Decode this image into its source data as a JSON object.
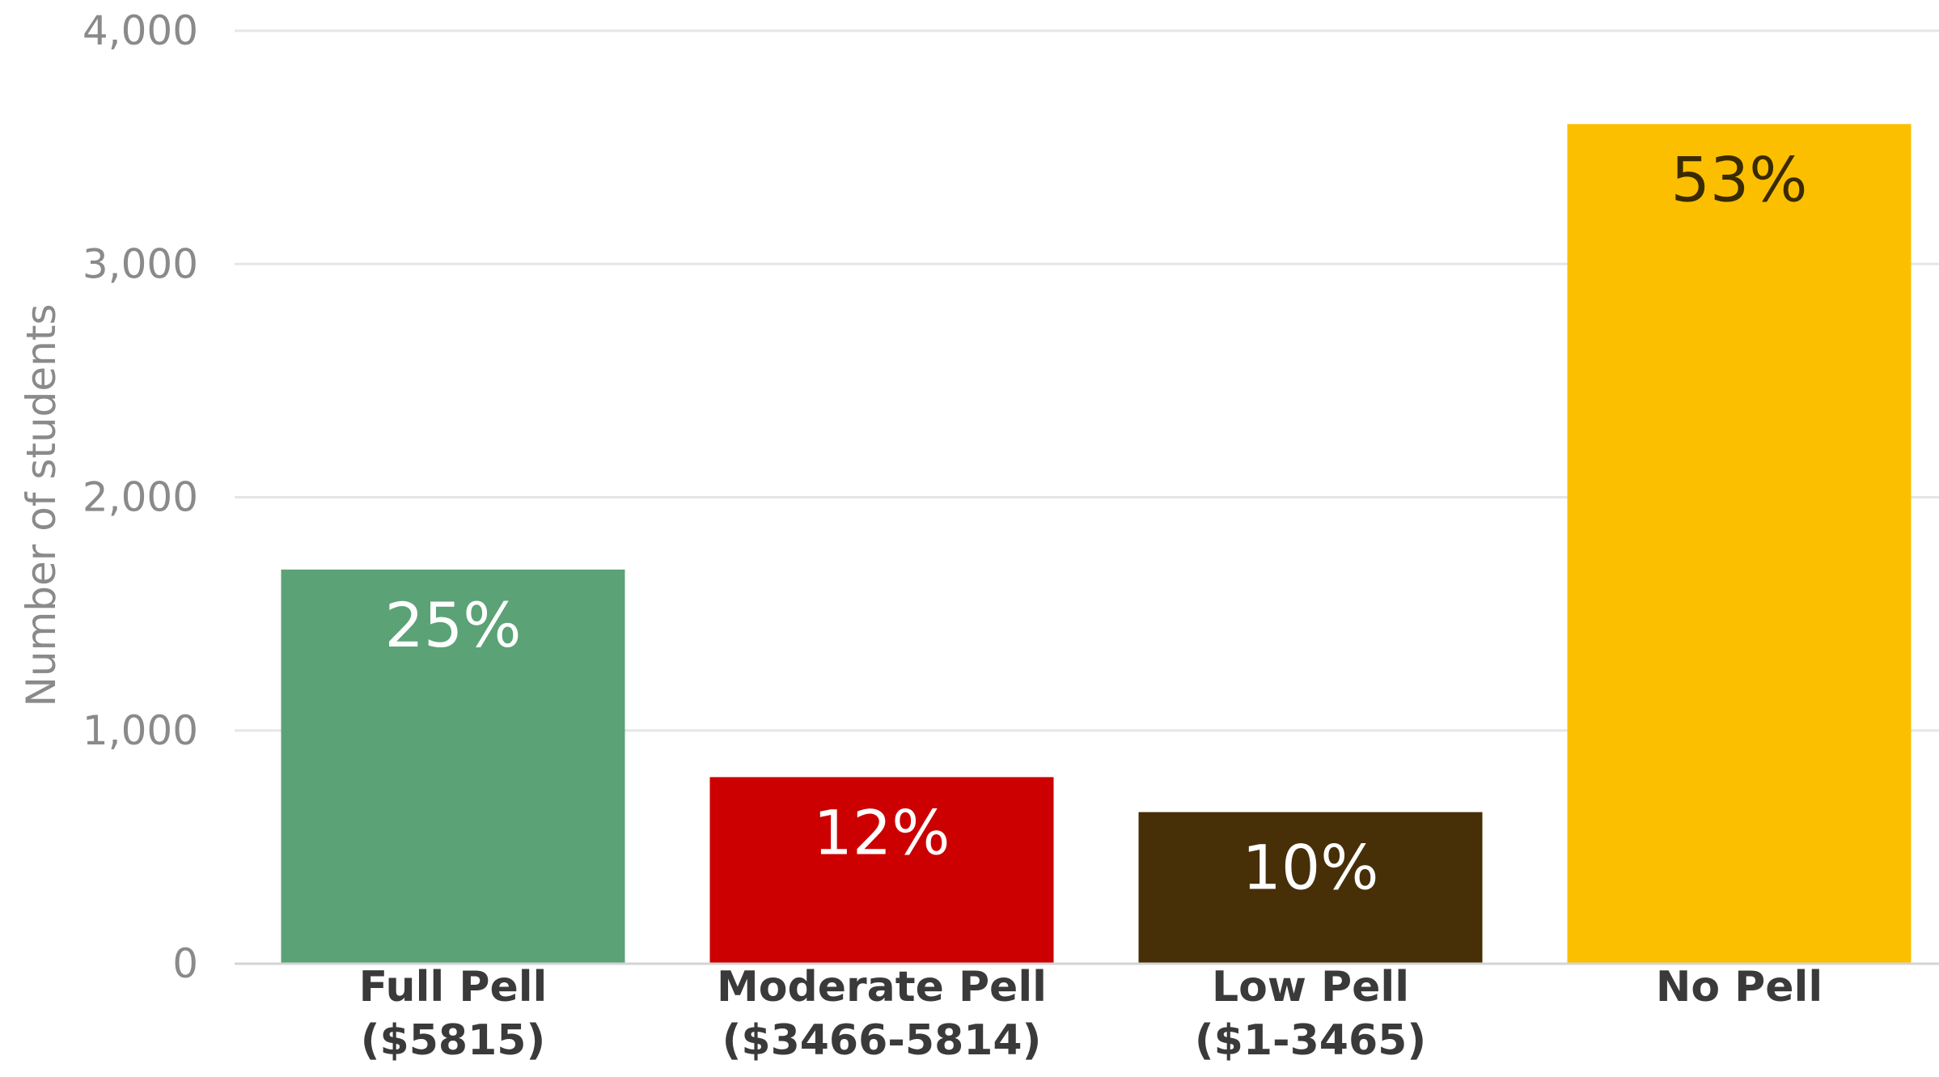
{
  "chart_data": {
    "type": "bar",
    "title": "",
    "xlabel": "",
    "ylabel": "Number of students",
    "ylim": [
      0,
      4000
    ],
    "yticks": [
      0,
      1000,
      2000,
      3000,
      4000
    ],
    "ytick_labels": [
      "0",
      "1,000",
      "2,000",
      "3,000",
      "4,000"
    ],
    "grid": true,
    "legend": "none",
    "categories": [
      [
        "Full Pell",
        "($5815)"
      ],
      [
        "Moderate Pell",
        "($3466-5814)"
      ],
      [
        "Low Pell",
        "($1-3465)"
      ],
      [
        "No Pell"
      ]
    ],
    "values": [
      1690,
      800,
      650,
      3600
    ],
    "data_labels": [
      "25%",
      "12%",
      "10%",
      "53%"
    ],
    "colors": [
      "#5ba276",
      "#cc0000",
      "#472f07",
      "#fbbf00"
    ],
    "label_colors": [
      "#ffffff",
      "#ffffff",
      "#ffffff",
      "#3a2a00"
    ]
  }
}
